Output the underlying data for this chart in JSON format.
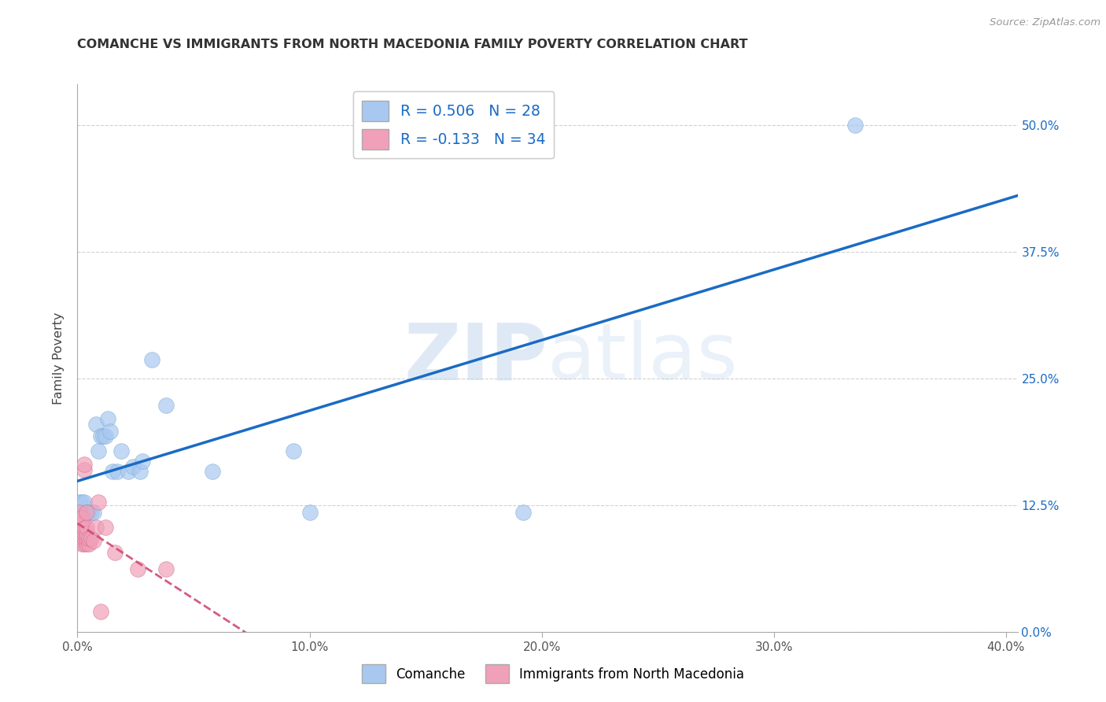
{
  "title": "COMANCHE VS IMMIGRANTS FROM NORTH MACEDONIA FAMILY POVERTY CORRELATION CHART",
  "source": "Source: ZipAtlas.com",
  "xlim": [
    0.0,
    0.405
  ],
  "ylim": [
    0.0,
    0.54
  ],
  "ylabel": "Family Poverty",
  "watermark_zip": "ZIP",
  "watermark_atlas": "atlas",
  "comanche_color": "#a8c8f0",
  "comanche_edge": "#7aaad0",
  "macedonia_color": "#f0a0b8",
  "macedonia_edge": "#d07090",
  "comanche_line_color": "#1a6bc4",
  "macedonia_line_color": "#d04878",
  "comanche_points": [
    [
      0.001,
      0.128
    ],
    [
      0.002,
      0.128
    ],
    [
      0.003,
      0.128
    ],
    [
      0.004,
      0.118
    ],
    [
      0.005,
      0.118
    ],
    [
      0.006,
      0.118
    ],
    [
      0.007,
      0.118
    ],
    [
      0.008,
      0.205
    ],
    [
      0.009,
      0.178
    ],
    [
      0.01,
      0.193
    ],
    [
      0.011,
      0.193
    ],
    [
      0.012,
      0.193
    ],
    [
      0.013,
      0.21
    ],
    [
      0.014,
      0.198
    ],
    [
      0.015,
      0.158
    ],
    [
      0.017,
      0.158
    ],
    [
      0.019,
      0.178
    ],
    [
      0.022,
      0.158
    ],
    [
      0.024,
      0.163
    ],
    [
      0.027,
      0.158
    ],
    [
      0.028,
      0.168
    ],
    [
      0.032,
      0.268
    ],
    [
      0.038,
      0.223
    ],
    [
      0.058,
      0.158
    ],
    [
      0.093,
      0.178
    ],
    [
      0.1,
      0.118
    ],
    [
      0.192,
      0.118
    ],
    [
      0.335,
      0.5
    ]
  ],
  "macedonia_points": [
    [
      0.001,
      0.092
    ],
    [
      0.001,
      0.097
    ],
    [
      0.001,
      0.102
    ],
    [
      0.001,
      0.107
    ],
    [
      0.001,
      0.112
    ],
    [
      0.001,
      0.118
    ],
    [
      0.002,
      0.087
    ],
    [
      0.002,
      0.092
    ],
    [
      0.002,
      0.097
    ],
    [
      0.002,
      0.102
    ],
    [
      0.002,
      0.107
    ],
    [
      0.002,
      0.112
    ],
    [
      0.003,
      0.087
    ],
    [
      0.003,
      0.092
    ],
    [
      0.003,
      0.097
    ],
    [
      0.003,
      0.102
    ],
    [
      0.003,
      0.16
    ],
    [
      0.003,
      0.165
    ],
    [
      0.004,
      0.087
    ],
    [
      0.004,
      0.092
    ],
    [
      0.004,
      0.097
    ],
    [
      0.004,
      0.103
    ],
    [
      0.004,
      0.118
    ],
    [
      0.005,
      0.087
    ],
    [
      0.005,
      0.092
    ],
    [
      0.006,
      0.092
    ],
    [
      0.007,
      0.09
    ],
    [
      0.008,
      0.103
    ],
    [
      0.009,
      0.128
    ],
    [
      0.01,
      0.02
    ],
    [
      0.012,
      0.103
    ],
    [
      0.016,
      0.078
    ],
    [
      0.026,
      0.062
    ],
    [
      0.038,
      0.062
    ]
  ],
  "comanche_R": 0.506,
  "comanche_N": 28,
  "macedonia_R": -0.133,
  "macedonia_N": 34,
  "grid_color": "#cccccc",
  "background_color": "#ffffff",
  "x_tick_vals": [
    0.0,
    0.1,
    0.2,
    0.3,
    0.4
  ],
  "x_tick_labels": [
    "0.0%",
    "10.0%",
    "20.0%",
    "30.0%",
    "40.0%"
  ],
  "y_tick_vals": [
    0.0,
    0.125,
    0.25,
    0.375,
    0.5
  ],
  "y_tick_labels": [
    "0.0%",
    "12.5%",
    "25.0%",
    "37.5%",
    "50.0%"
  ]
}
